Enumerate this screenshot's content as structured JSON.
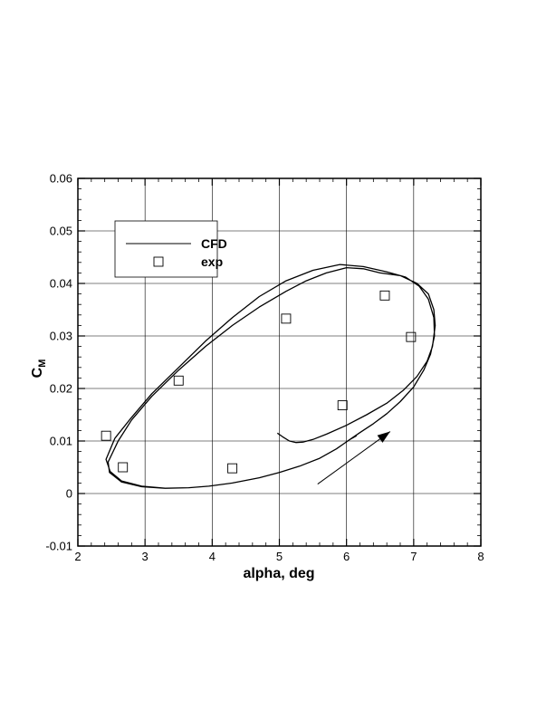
{
  "chart_data": {
    "type": "line",
    "xlabel": "alpha, deg",
    "ylabel_main": "C",
    "ylabel_sub": "M",
    "xlim": [
      2,
      8
    ],
    "ylim": [
      -0.01,
      0.06
    ],
    "xticks": [
      2,
      3,
      4,
      5,
      6,
      7,
      8
    ],
    "yticks": [
      -0.01,
      0,
      0.01,
      0.02,
      0.03,
      0.04,
      0.05,
      0.06
    ],
    "xtick_labels": [
      "2",
      "3",
      "4",
      "5",
      "6",
      "7",
      "8"
    ],
    "ytick_labels": [
      "-0.01",
      "0",
      "0.01",
      "0.02",
      "0.03",
      "0.04",
      "0.05",
      "0.06"
    ],
    "grid": true,
    "legend_placement": "upper-left",
    "series": [
      {
        "name": "CFD",
        "style": "line",
        "color": "#000000",
        "x": [
          4.97,
          5.05,
          5.15,
          5.25,
          5.35,
          5.5,
          5.7,
          6.0,
          6.3,
          6.6,
          6.85,
          7.05,
          7.2,
          7.28,
          7.32,
          7.3,
          7.22,
          7.05,
          6.8,
          6.5,
          6.25,
          6.0,
          5.7,
          5.4,
          5.1,
          4.7,
          4.3,
          3.9,
          3.5,
          3.1,
          2.8,
          2.6,
          2.45,
          2.47,
          2.65,
          2.95,
          3.3,
          3.65,
          3.95,
          4.3,
          4.7,
          5.0,
          5.3,
          5.6,
          5.85,
          6.05,
          6.2,
          6.4,
          6.6,
          6.8,
          7.0,
          7.15,
          7.25,
          7.31,
          7.3,
          7.22,
          7.08,
          6.88,
          6.6,
          6.25,
          5.9,
          5.5,
          5.1,
          4.7,
          4.3,
          3.9,
          3.5,
          3.1,
          2.8,
          2.55,
          2.42,
          2.48,
          2.65,
          2.95,
          3.3,
          3.65,
          3.95,
          4.3,
          4.7,
          5.0,
          5.3,
          5.6,
          5.85,
          6.05,
          6.15
        ],
        "y": [
          0.0115,
          0.0108,
          0.01,
          0.0097,
          0.0098,
          0.0103,
          0.0113,
          0.013,
          0.015,
          0.0172,
          0.0197,
          0.0223,
          0.0252,
          0.028,
          0.032,
          0.035,
          0.038,
          0.04,
          0.0415,
          0.042,
          0.0428,
          0.043,
          0.042,
          0.0405,
          0.0385,
          0.0355,
          0.032,
          0.028,
          0.0235,
          0.0185,
          0.014,
          0.01,
          0.006,
          0.004,
          0.0022,
          0.0013,
          0.001,
          0.0011,
          0.0014,
          0.002,
          0.003,
          0.004,
          0.0052,
          0.0067,
          0.0085,
          0.0103,
          0.0116,
          0.0133,
          0.0152,
          0.0175,
          0.0203,
          0.0235,
          0.0265,
          0.03,
          0.0335,
          0.037,
          0.0395,
          0.0412,
          0.0422,
          0.0432,
          0.0436,
          0.0425,
          0.0405,
          0.0375,
          0.0335,
          0.029,
          0.024,
          0.019,
          0.0145,
          0.0105,
          0.0065,
          0.0042,
          0.0024,
          0.0014,
          0.001,
          0.0011,
          0.0014,
          0.002,
          0.003,
          0.004,
          0.0052,
          0.0067,
          0.0085,
          0.0103,
          0.011
        ]
      },
      {
        "name": "exp",
        "style": "square-marker",
        "color": "#000000",
        "x": [
          2.42,
          2.67,
          3.5,
          4.3,
          5.1,
          5.94,
          6.57,
          6.96
        ],
        "y": [
          0.011,
          0.005,
          0.0215,
          0.0048,
          0.0333,
          0.0168,
          0.0377,
          0.0298
        ]
      }
    ],
    "annotations": [
      {
        "type": "arrow",
        "x": [
          5.57,
          6.65
        ],
        "y": [
          0.0018,
          0.0118
        ]
      }
    ]
  }
}
